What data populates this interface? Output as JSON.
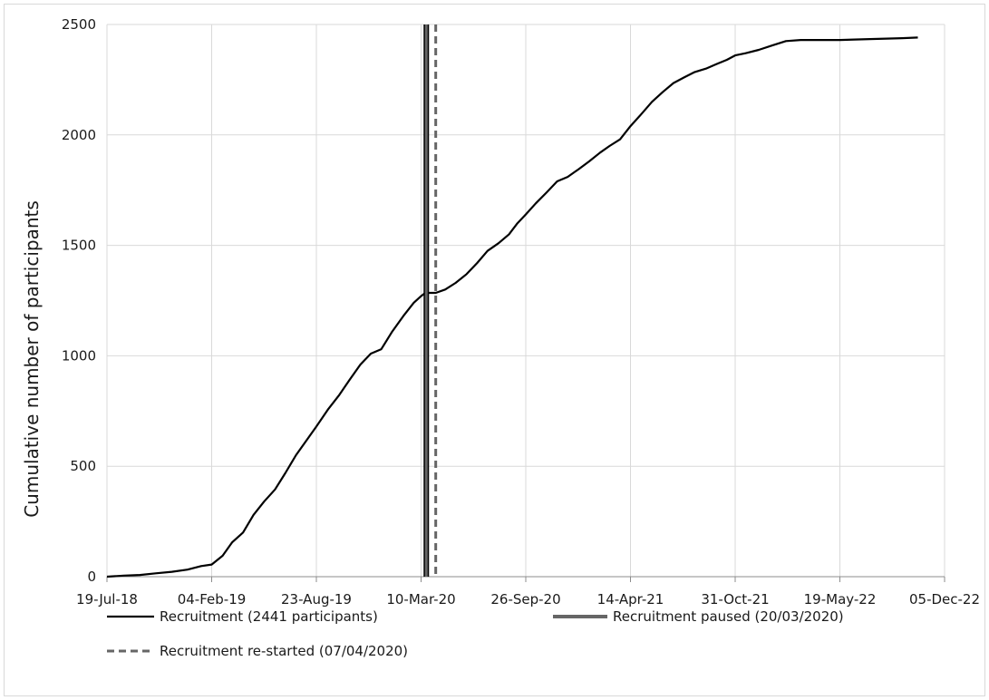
{
  "chart_data": {
    "type": "line",
    "title": "",
    "xlabel": "",
    "ylabel": "Cumulative number of participants",
    "ylim": [
      0,
      2500
    ],
    "yticks": [
      0,
      500,
      1000,
      1500,
      2000,
      2500
    ],
    "xlim": [
      "2018-07-19",
      "2022-12-05"
    ],
    "xticks": [
      {
        "date": "2018-07-19",
        "label": "19-Jul-18"
      },
      {
        "date": "2019-02-04",
        "label": "04-Feb-19"
      },
      {
        "date": "2019-08-23",
        "label": "23-Aug-19"
      },
      {
        "date": "2020-03-10",
        "label": "10-Mar-20"
      },
      {
        "date": "2020-09-26",
        "label": "26-Sep-20"
      },
      {
        "date": "2021-04-14",
        "label": "14-Apr-21"
      },
      {
        "date": "2021-10-31",
        "label": "31-Oct-21"
      },
      {
        "date": "2022-05-19",
        "label": "19-May-22"
      },
      {
        "date": "2022-12-05",
        "label": "05-Dec-22"
      }
    ],
    "grid": true,
    "legend_position": "bottom",
    "series": [
      {
        "name": "Recruitment (2441 participants)",
        "color": "#000000",
        "x": [
          "2018-07-19",
          "2018-08-20",
          "2018-09-20",
          "2018-10-20",
          "2018-11-20",
          "2018-12-20",
          "2019-01-15",
          "2019-02-04",
          "2019-02-25",
          "2019-03-15",
          "2019-04-05",
          "2019-04-25",
          "2019-05-15",
          "2019-06-05",
          "2019-06-25",
          "2019-07-15",
          "2019-08-05",
          "2019-08-23",
          "2019-09-15",
          "2019-10-05",
          "2019-10-25",
          "2019-11-15",
          "2019-12-05",
          "2019-12-25",
          "2020-01-15",
          "2020-02-05",
          "2020-02-25",
          "2020-03-10",
          "2020-03-18",
          "2020-04-07",
          "2020-04-25",
          "2020-05-15",
          "2020-06-05",
          "2020-06-25",
          "2020-07-15",
          "2020-08-05",
          "2020-08-25",
          "2020-09-10",
          "2020-09-26",
          "2020-10-15",
          "2020-11-05",
          "2020-11-25",
          "2020-12-15",
          "2021-01-05",
          "2021-01-25",
          "2021-02-15",
          "2021-03-05",
          "2021-03-25",
          "2021-04-14",
          "2021-05-05",
          "2021-05-25",
          "2021-06-15",
          "2021-07-05",
          "2021-07-25",
          "2021-08-15",
          "2021-09-05",
          "2021-09-25",
          "2021-10-15",
          "2021-10-31",
          "2021-11-20",
          "2021-12-15",
          "2022-01-10",
          "2022-02-05",
          "2022-03-05",
          "2022-04-05",
          "2022-04-25",
          "2022-05-19",
          "2022-06-15",
          "2022-07-15",
          "2022-08-15",
          "2022-09-15",
          "2022-10-15"
        ],
        "y": [
          0,
          5,
          8,
          15,
          22,
          32,
          48,
          55,
          95,
          155,
          200,
          280,
          340,
          395,
          470,
          550,
          620,
          680,
          760,
          820,
          890,
          960,
          1010,
          1030,
          1110,
          1180,
          1240,
          1270,
          1285,
          1285,
          1300,
          1330,
          1370,
          1420,
          1475,
          1510,
          1550,
          1600,
          1640,
          1690,
          1740,
          1790,
          1810,
          1845,
          1880,
          1920,
          1950,
          1980,
          2040,
          2095,
          2150,
          2195,
          2235,
          2260,
          2285,
          2300,
          2320,
          2340,
          2360,
          2370,
          2385,
          2405,
          2425,
          2430,
          2430,
          2430,
          2430,
          2432,
          2434,
          2436,
          2438,
          2441
        ]
      },
      {
        "name": "Recruitment paused (20/03/2020)",
        "color": "#666666",
        "vertical_line_at": "2020-03-20"
      },
      {
        "name": "Recruitment re-started (07/04/2020)",
        "color": "#666666",
        "style": "dashed",
        "vertical_line_at": "2020-04-07"
      }
    ]
  }
}
